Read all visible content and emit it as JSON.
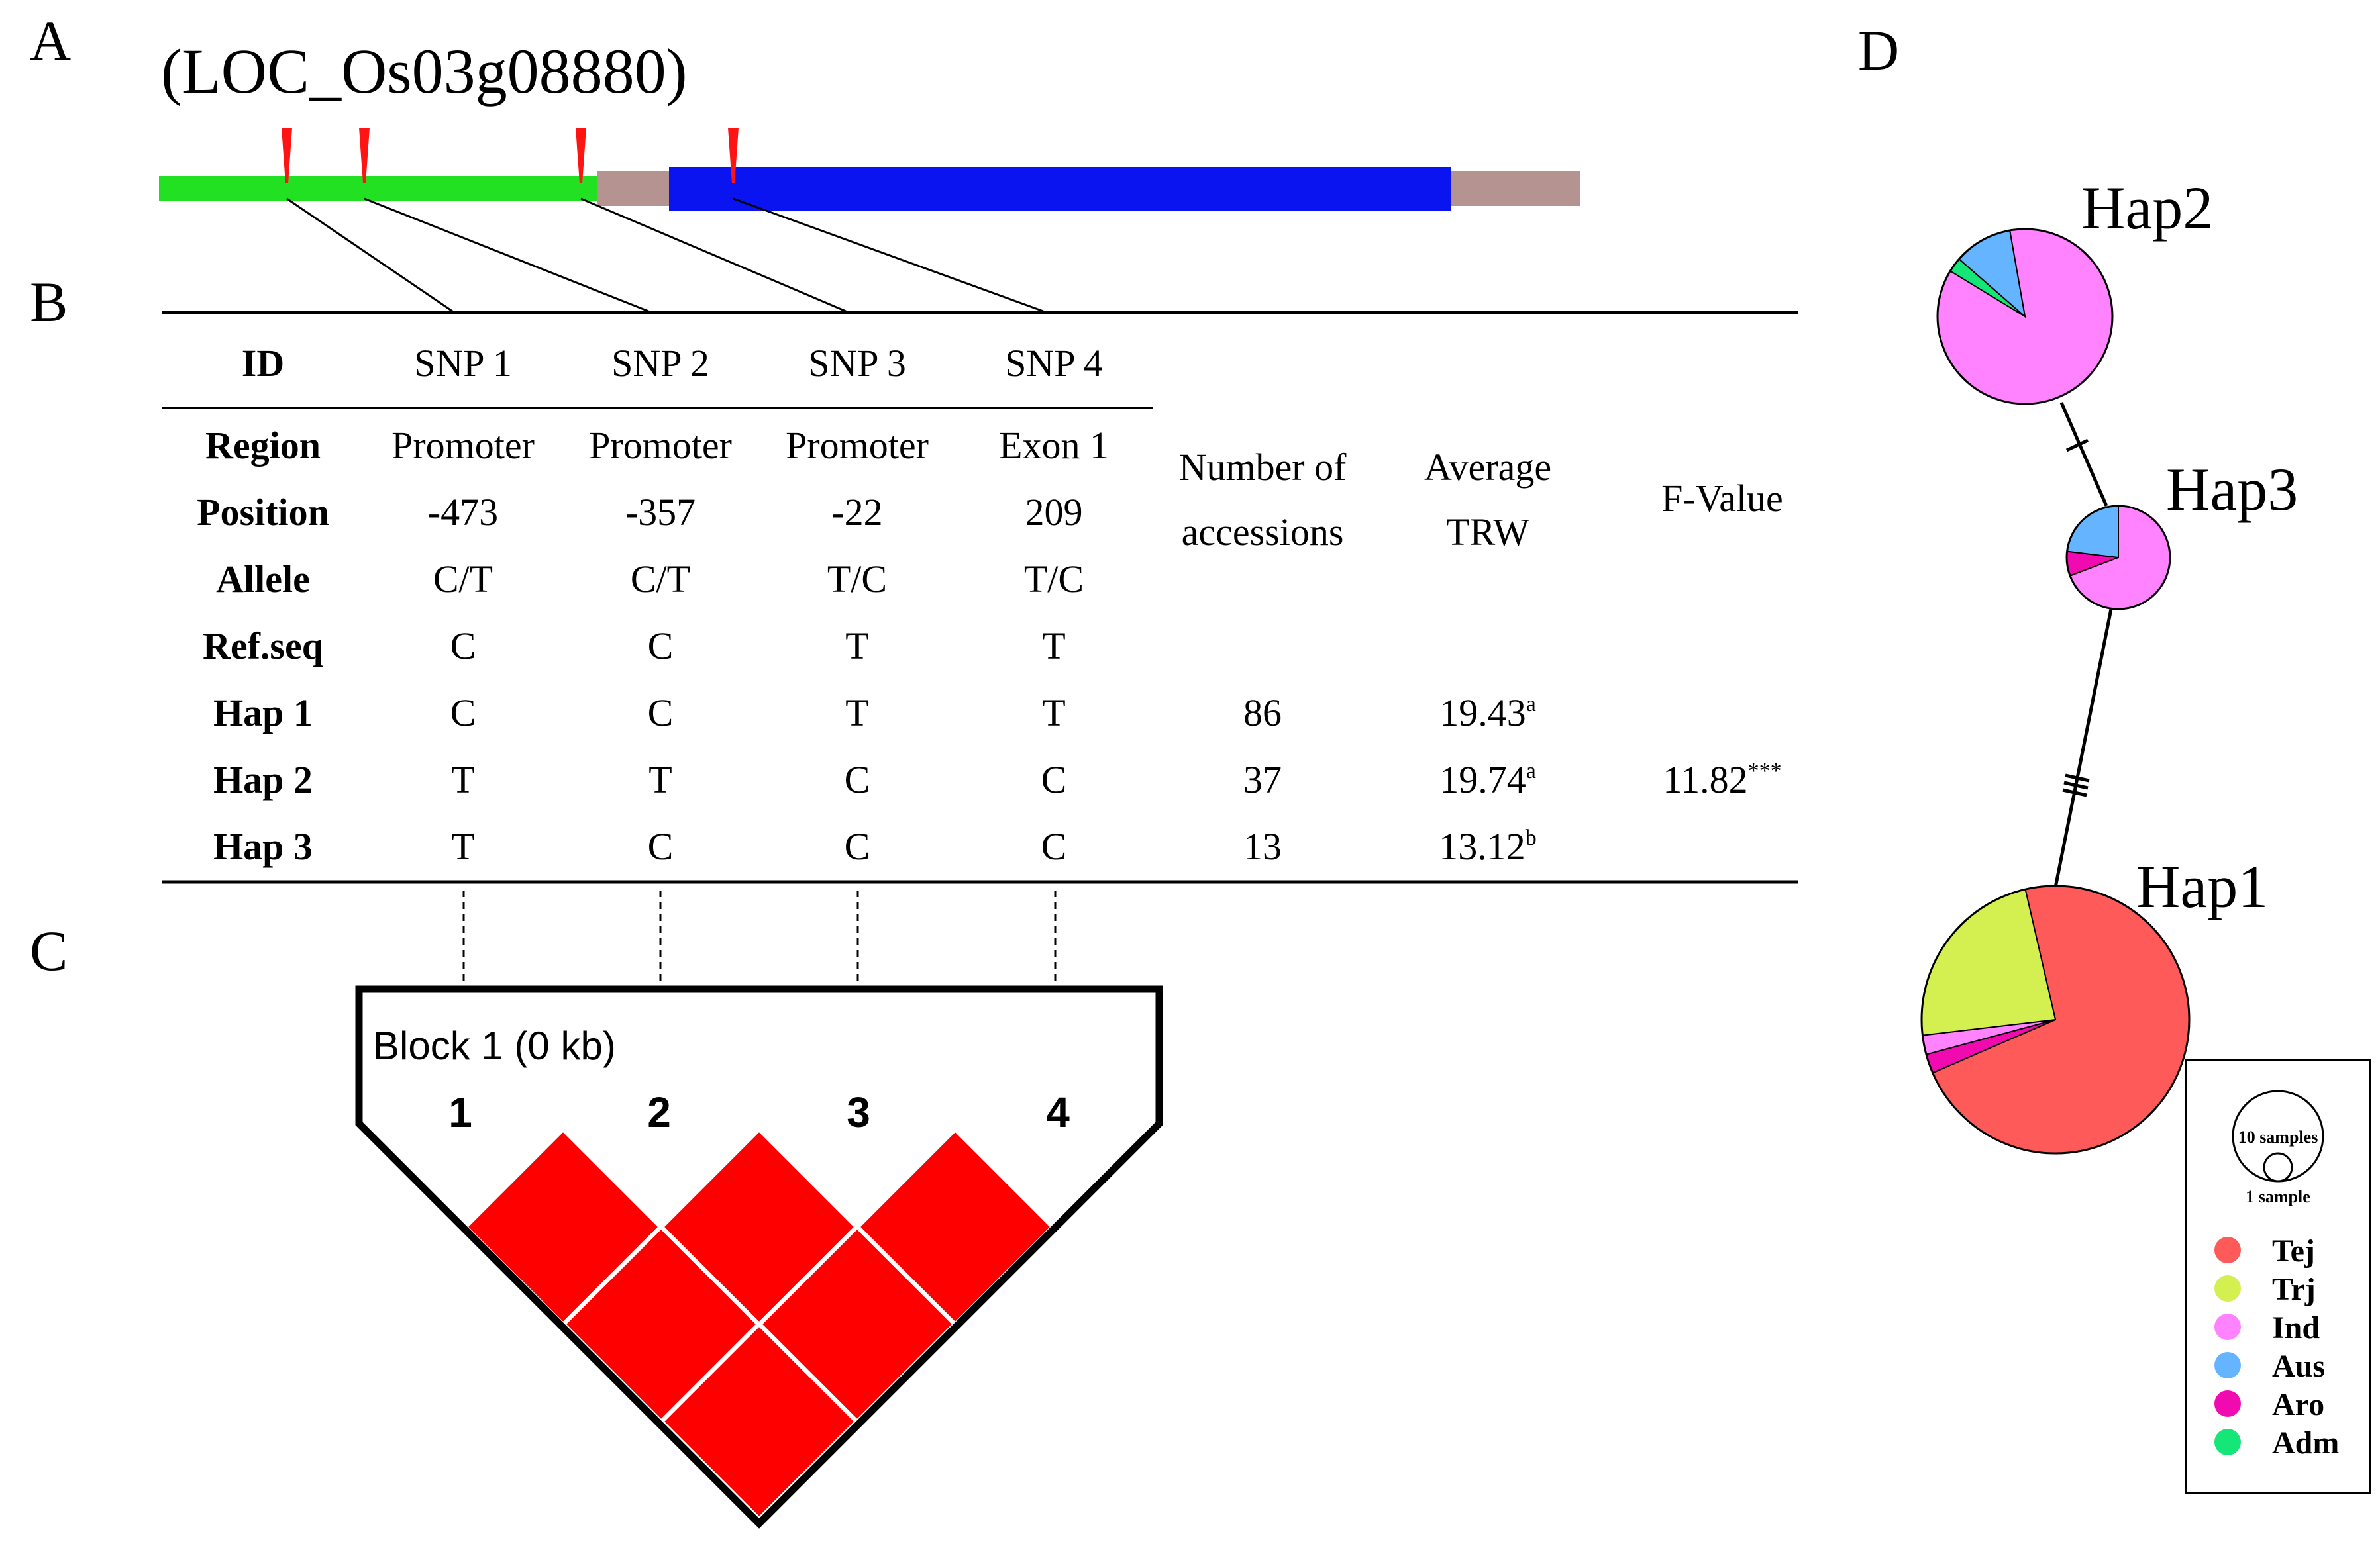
{
  "panel_labels": {
    "a": "A",
    "b": "B",
    "c": "C",
    "d": "D"
  },
  "gene_id": "(LOC_Os03g08880)",
  "gene_colors": {
    "promoter": "#22e022",
    "utr": "#b49390",
    "exon": "#0a14f0",
    "snp_marker": "#ff1414"
  },
  "table": {
    "header_id": "ID",
    "snps": [
      "SNP 1",
      "SNP 2",
      "SNP 3",
      "SNP 4"
    ],
    "rows": [
      {
        "label": "Region",
        "values": [
          "Promoter",
          "Promoter",
          "Promoter",
          "Exon 1"
        ]
      },
      {
        "label": "Position",
        "values": [
          "-473",
          "-357",
          "-22",
          "209"
        ]
      },
      {
        "label": "Allele",
        "values": [
          "C/T",
          "C/T",
          "T/C",
          "T/C"
        ]
      },
      {
        "label": "Ref.seq",
        "values": [
          "C",
          "C",
          "T",
          "T"
        ]
      }
    ],
    "haps": [
      {
        "label": "Hap 1",
        "values": [
          "C",
          "C",
          "T",
          "T"
        ],
        "n": "86",
        "trw": "19.43",
        "sup": "a"
      },
      {
        "label": "Hap 2",
        "values": [
          "T",
          "T",
          "C",
          "C"
        ],
        "n": "37",
        "trw": "19.74",
        "sup": "a"
      },
      {
        "label": "Hap 3",
        "values": [
          "T",
          "C",
          "C",
          "C"
        ],
        "n": "13",
        "trw": "13.12",
        "sup": "b"
      }
    ],
    "col_accessions": [
      "Number of",
      "accessions"
    ],
    "col_trw": [
      "Average",
      "TRW"
    ],
    "col_f": "F-Value",
    "f_value": "11.82",
    "f_sup": "***"
  },
  "ld_block": {
    "title": "Block 1 (0 kb)",
    "markers": [
      "1",
      "2",
      "3",
      "4"
    ],
    "cell_color": "#ff0000"
  },
  "network": {
    "haplotypes": [
      {
        "name": "Hap2",
        "slices": [
          {
            "group": "Ind",
            "value": 32
          },
          {
            "group": "Adm",
            "value": 1
          },
          {
            "group": "Aus",
            "value": 4
          }
        ]
      },
      {
        "name": "Hap3",
        "slices": [
          {
            "group": "Ind",
            "value": 9
          },
          {
            "group": "Aro",
            "value": 1
          },
          {
            "group": "Aus",
            "value": 3
          }
        ]
      },
      {
        "name": "Hap1",
        "slices": [
          {
            "group": "Tej",
            "value": 62
          },
          {
            "group": "Aro",
            "value": 2
          },
          {
            "group": "Ind",
            "value": 2
          },
          {
            "group": "Trj",
            "value": 20
          }
        ]
      }
    ],
    "size_legend": {
      "large": "10 samples",
      "small": "1 sample"
    },
    "groups": [
      {
        "name": "Tej",
        "color": "#ff5a5a"
      },
      {
        "name": "Trj",
        "color": "#d4f050"
      },
      {
        "name": "Ind",
        "color": "#ff82ff"
      },
      {
        "name": "Aus",
        "color": "#64b4ff"
      },
      {
        "name": "Aro",
        "color": "#f00aaf"
      },
      {
        "name": "Adm",
        "color": "#14e678"
      }
    ]
  }
}
